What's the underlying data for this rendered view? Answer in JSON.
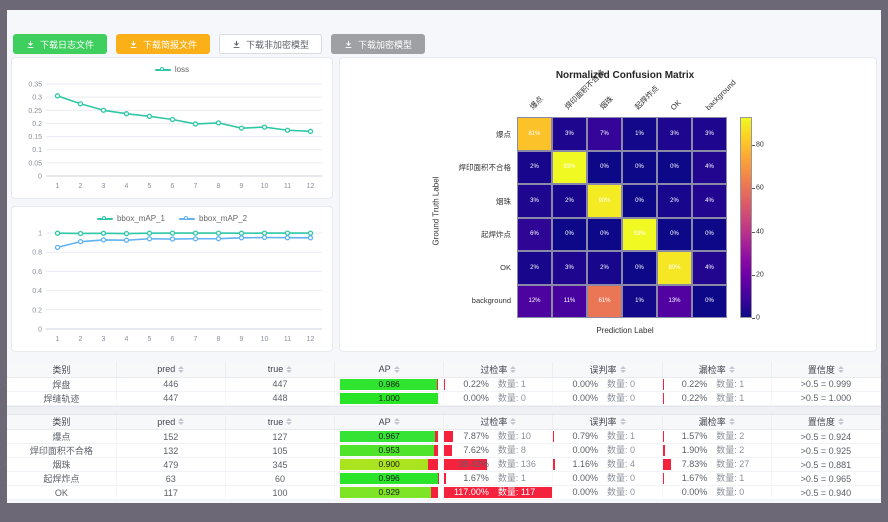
{
  "toolbar": {
    "buttons": [
      {
        "label": "下载日志文件",
        "variant": "green"
      },
      {
        "label": "下载简报文件",
        "variant": "orange"
      },
      {
        "label": "下载非加密模型",
        "variant": "white"
      },
      {
        "label": "下载加密模型",
        "variant": "gray"
      }
    ]
  },
  "chart_data": [
    {
      "id": "loss-chart",
      "type": "line",
      "x": [
        1,
        2,
        3,
        4,
        5,
        6,
        7,
        8,
        9,
        10,
        11,
        12
      ],
      "series": [
        {
          "name": "loss",
          "color": "#2fc7a6",
          "values": [
            0.305,
            0.275,
            0.25,
            0.237,
            0.227,
            0.215,
            0.198,
            0.202,
            0.182,
            0.186,
            0.174,
            0.17
          ]
        }
      ],
      "ylim": [
        0,
        0.35
      ],
      "yticks": [
        0,
        0.05,
        0.1,
        0.15,
        0.2,
        0.25,
        0.3,
        0.35
      ],
      "grid": true,
      "legend_position": "top"
    },
    {
      "id": "map-chart",
      "type": "line",
      "x": [
        1,
        2,
        3,
        4,
        5,
        6,
        7,
        8,
        9,
        10,
        11,
        12
      ],
      "series": [
        {
          "name": "bbox_mAP_1",
          "color": "#2fc7a6",
          "values": [
            0.998,
            0.995,
            0.997,
            0.994,
            0.998,
            0.999,
            0.999,
            0.999,
            0.998,
            0.999,
            0.999,
            0.999
          ]
        },
        {
          "name": "bbox_mAP_2",
          "color": "#62b2f2",
          "values": [
            0.85,
            0.91,
            0.928,
            0.925,
            0.94,
            0.937,
            0.94,
            0.941,
            0.95,
            0.953,
            0.951,
            0.95
          ]
        }
      ],
      "ylim": [
        0,
        1
      ],
      "yticks": [
        0,
        0.2,
        0.4,
        0.6,
        0.8,
        1
      ],
      "grid": true,
      "legend_position": "top"
    },
    {
      "id": "confusion-matrix",
      "type": "heatmap",
      "title": "Normalized Confusion Matrix",
      "xlabel": "Prediction Label",
      "ylabel": "Ground Truth Label",
      "labels": [
        "爆点",
        "焊印面积不合格",
        "烟珠",
        "起焊炸点",
        "OK",
        "background"
      ],
      "matrix": [
        [
          81,
          3,
          7,
          1,
          3,
          3
        ],
        [
          2,
          93,
          0,
          0,
          0,
          4
        ],
        [
          3,
          2,
          90,
          0,
          2,
          4
        ],
        [
          6,
          0,
          0,
          93,
          0,
          0
        ],
        [
          2,
          3,
          2,
          0,
          89,
          4
        ],
        [
          12,
          11,
          61,
          1,
          13,
          0
        ]
      ],
      "unit": "%",
      "vmax": 93,
      "colormap": "plasma",
      "colorbar_ticks": [
        0,
        20,
        40,
        60,
        80
      ]
    }
  ],
  "tables": [
    {
      "headers": [
        {
          "label": "类别",
          "sortable": false
        },
        {
          "label": "pred",
          "sortable": true
        },
        {
          "label": "true",
          "sortable": true
        },
        {
          "label": "AP",
          "sortable": true
        },
        {
          "label": "过检率",
          "sortable": true
        },
        {
          "label": "误判率",
          "sortable": true
        },
        {
          "label": "漏检率",
          "sortable": true
        },
        {
          "label": "置信度",
          "sortable": true
        }
      ],
      "rows": [
        {
          "cls": "焊盘",
          "pred": "446",
          "true": "447",
          "ap": "0.986",
          "ap_val": 0.986,
          "ap_color": "#30e530",
          "over": {
            "pct": "0.22%",
            "count": "数量: 1",
            "val": 0.22
          },
          "mis": {
            "pct": "0.00%",
            "count": "数量: 0",
            "val": 0
          },
          "miss": {
            "pct": "0.22%",
            "count": "数量: 1",
            "val": 0.22
          },
          "conf": ">0.5 = 0.999"
        },
        {
          "cls": "焊缝轨迹",
          "pred": "447",
          "true": "448",
          "ap": "1.000",
          "ap_val": 1.0,
          "ap_color": "#27e427",
          "over": {
            "pct": "0.00%",
            "count": "数量: 0",
            "val": 0
          },
          "mis": {
            "pct": "0.00%",
            "count": "数量: 0",
            "val": 0
          },
          "miss": {
            "pct": "0.22%",
            "count": "数量: 1",
            "val": 0.22
          },
          "conf": ">0.5 = 1.000"
        }
      ]
    },
    {
      "headers": [
        {
          "label": "类别",
          "sortable": false
        },
        {
          "label": "pred",
          "sortable": true
        },
        {
          "label": "true",
          "sortable": true
        },
        {
          "label": "AP",
          "sortable": true
        },
        {
          "label": "过检率",
          "sortable": true
        },
        {
          "label": "误判率",
          "sortable": true
        },
        {
          "label": "漏检率",
          "sortable": true
        },
        {
          "label": "置信度",
          "sortable": true
        }
      ],
      "rows": [
        {
          "cls": "爆点",
          "pred": "152",
          "true": "127",
          "ap": "0.967",
          "ap_val": 0.967,
          "ap_color": "#35e335",
          "over": {
            "pct": "7.87%",
            "count": "数量: 10",
            "val": 7.87
          },
          "mis": {
            "pct": "0.79%",
            "count": "数量: 1",
            "val": 0.79
          },
          "miss": {
            "pct": "1.57%",
            "count": "数量: 2",
            "val": 1.57
          },
          "conf": ">0.5 = 0.924"
        },
        {
          "cls": "焊印面积不合格",
          "pred": "132",
          "true": "105",
          "ap": "0.953",
          "ap_val": 0.953,
          "ap_color": "#4fe32c",
          "over": {
            "pct": "7.62%",
            "count": "数量: 8",
            "val": 7.62
          },
          "mis": {
            "pct": "0.00%",
            "count": "数量: 0",
            "val": 0
          },
          "miss": {
            "pct": "1.90%",
            "count": "数量: 2",
            "val": 1.9
          },
          "conf": ">0.5 = 0.925"
        },
        {
          "cls": "烟珠",
          "pred": "479",
          "true": "345",
          "ap": "0.900",
          "ap_val": 0.9,
          "ap_color": "#a9e41e",
          "over": {
            "pct": "39.42%",
            "count": "数量: 136",
            "val": 39.42
          },
          "mis": {
            "pct": "1.16%",
            "count": "数量: 4",
            "val": 1.16
          },
          "miss": {
            "pct": "7.83%",
            "count": "数量: 27",
            "val": 7.83
          },
          "conf": ">0.5 = 0.881"
        },
        {
          "cls": "起焊炸点",
          "pred": "63",
          "true": "60",
          "ap": "0.996",
          "ap_val": 0.996,
          "ap_color": "#29e429",
          "over": {
            "pct": "1.67%",
            "count": "数量: 1",
            "val": 1.67
          },
          "mis": {
            "pct": "0.00%",
            "count": "数量: 0",
            "val": 0
          },
          "miss": {
            "pct": "1.67%",
            "count": "数量: 1",
            "val": 1.67
          },
          "conf": ">0.5 = 0.965"
        },
        {
          "cls": "OK",
          "pred": "117",
          "true": "100",
          "ap": "0.929",
          "ap_val": 0.929,
          "ap_color": "#7de426",
          "over": {
            "pct": "117.00%",
            "count": "数量: 117",
            "val": 117,
            "full": true
          },
          "mis": {
            "pct": "0.00%",
            "count": "数量: 0",
            "val": 0
          },
          "miss": {
            "pct": "0.00%",
            "count": "数量: 0",
            "val": 0
          },
          "conf": ">0.5 = 0.940"
        }
      ]
    }
  ],
  "colors": {
    "bar_red": "#f5223d",
    "frame": "#6d6875"
  }
}
